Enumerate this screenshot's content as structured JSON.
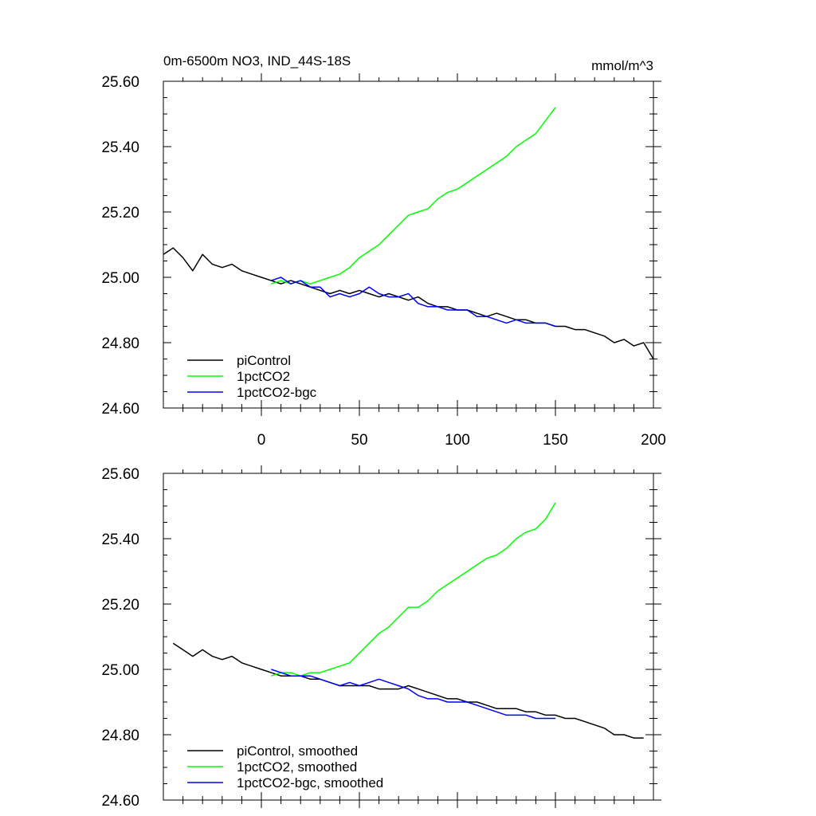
{
  "chart_data": [
    {
      "type": "line",
      "title": "0m-6500m NO3, IND_44S-18S",
      "units": "mmol/m^3",
      "xlim": [
        -50,
        200
      ],
      "ylim": [
        24.6,
        25.6
      ],
      "x_ticks": [
        "0",
        "50",
        "100",
        "150",
        "200"
      ],
      "y_ticks": [
        "25.60",
        "25.40",
        "25.20",
        "25.00",
        "24.80",
        "24.60"
      ],
      "legend_position": "bottom-left",
      "series": [
        {
          "name": "piControl",
          "color": "#000000",
          "x": [
            -50,
            -45,
            -40,
            -35,
            -30,
            -25,
            -20,
            -15,
            -10,
            -5,
            0,
            5,
            10,
            15,
            20,
            25,
            30,
            35,
            40,
            45,
            50,
            55,
            60,
            65,
            70,
            75,
            80,
            85,
            90,
            95,
            100,
            105,
            110,
            115,
            120,
            125,
            130,
            135,
            140,
            145,
            150,
            155,
            160,
            165,
            170,
            175,
            180,
            185,
            190,
            195,
            200
          ],
          "y": [
            25.07,
            25.09,
            25.06,
            25.02,
            25.07,
            25.04,
            25.03,
            25.04,
            25.02,
            25.01,
            25.0,
            24.99,
            24.98,
            24.99,
            24.98,
            24.97,
            24.96,
            24.95,
            24.96,
            24.95,
            24.96,
            24.95,
            24.94,
            24.95,
            24.94,
            24.93,
            24.94,
            24.92,
            24.91,
            24.91,
            24.9,
            24.9,
            24.89,
            24.88,
            24.89,
            24.88,
            24.87,
            24.87,
            24.86,
            24.86,
            24.85,
            24.85,
            24.84,
            24.84,
            24.83,
            24.82,
            24.8,
            24.81,
            24.79,
            24.8,
            24.75
          ]
        },
        {
          "name": "1pctCO2",
          "color": "#00ff00",
          "x": [
            5,
            10,
            15,
            20,
            25,
            30,
            35,
            40,
            45,
            50,
            55,
            60,
            65,
            70,
            75,
            80,
            85,
            90,
            95,
            100,
            105,
            110,
            115,
            120,
            125,
            130,
            135,
            140,
            145,
            150
          ],
          "y": [
            24.98,
            24.99,
            24.98,
            24.99,
            24.98,
            24.99,
            25.0,
            25.01,
            25.03,
            25.06,
            25.08,
            25.1,
            25.13,
            25.16,
            25.19,
            25.2,
            25.21,
            25.24,
            25.26,
            25.27,
            25.29,
            25.31,
            25.33,
            25.35,
            25.37,
            25.4,
            25.42,
            25.44,
            25.48,
            25.52
          ]
        },
        {
          "name": "1pctCO2-bgc",
          "color": "#0000ff",
          "x": [
            5,
            10,
            15,
            20,
            25,
            30,
            35,
            40,
            45,
            50,
            55,
            60,
            65,
            70,
            75,
            80,
            85,
            90,
            95,
            100,
            105,
            110,
            115,
            120,
            125,
            130,
            135,
            140,
            145,
            150
          ],
          "y": [
            24.99,
            25.0,
            24.98,
            24.99,
            24.97,
            24.97,
            24.94,
            24.95,
            24.94,
            24.95,
            24.97,
            24.95,
            24.94,
            24.94,
            24.95,
            24.92,
            24.91,
            24.91,
            24.9,
            24.9,
            24.9,
            24.88,
            24.88,
            24.87,
            24.86,
            24.87,
            24.86,
            24.86,
            24.86,
            24.85
          ]
        }
      ]
    },
    {
      "type": "line",
      "xlim": [
        -50,
        200
      ],
      "ylim": [
        24.6,
        25.6
      ],
      "y_ticks": [
        "25.60",
        "25.40",
        "25.20",
        "25.00",
        "24.80",
        "24.60"
      ],
      "legend_position": "bottom-left",
      "series": [
        {
          "name": "piControl, smoothed",
          "color": "#000000",
          "x": [
            -45,
            -40,
            -35,
            -30,
            -25,
            -20,
            -15,
            -10,
            -5,
            0,
            5,
            10,
            15,
            20,
            25,
            30,
            35,
            40,
            45,
            50,
            55,
            60,
            65,
            70,
            75,
            80,
            85,
            90,
            95,
            100,
            105,
            110,
            115,
            120,
            125,
            130,
            135,
            140,
            145,
            150,
            155,
            160,
            165,
            170,
            175,
            180,
            185,
            190,
            195
          ],
          "y": [
            25.08,
            25.06,
            25.04,
            25.06,
            25.04,
            25.03,
            25.04,
            25.02,
            25.01,
            25.0,
            24.99,
            24.98,
            24.98,
            24.98,
            24.97,
            24.97,
            24.96,
            24.95,
            24.95,
            24.95,
            24.95,
            24.94,
            24.94,
            24.94,
            24.95,
            24.94,
            24.93,
            24.92,
            24.91,
            24.91,
            24.9,
            24.9,
            24.89,
            24.88,
            24.88,
            24.88,
            24.87,
            24.87,
            24.86,
            24.86,
            24.85,
            24.85,
            24.84,
            24.83,
            24.82,
            24.8,
            24.8,
            24.79,
            24.79
          ]
        },
        {
          "name": "1pctCO2, smoothed",
          "color": "#00ff00",
          "x": [
            5,
            10,
            15,
            20,
            25,
            30,
            35,
            40,
            45,
            50,
            55,
            60,
            65,
            70,
            75,
            80,
            85,
            90,
            95,
            100,
            105,
            110,
            115,
            120,
            125,
            130,
            135,
            140,
            145,
            150
          ],
          "y": [
            24.98,
            24.99,
            24.99,
            24.98,
            24.99,
            24.99,
            25.0,
            25.01,
            25.02,
            25.05,
            25.08,
            25.11,
            25.13,
            25.16,
            25.19,
            25.19,
            25.21,
            25.24,
            25.26,
            25.28,
            25.3,
            25.32,
            25.34,
            25.35,
            25.37,
            25.4,
            25.42,
            25.43,
            25.46,
            25.51
          ]
        },
        {
          "name": "1pctCO2-bgc, smoothed",
          "color": "#0000ff",
          "x": [
            5,
            10,
            15,
            20,
            25,
            30,
            35,
            40,
            45,
            50,
            55,
            60,
            65,
            70,
            75,
            80,
            85,
            90,
            95,
            100,
            105,
            110,
            115,
            120,
            125,
            130,
            135,
            140,
            145,
            150
          ],
          "y": [
            25.0,
            24.99,
            24.98,
            24.98,
            24.98,
            24.97,
            24.96,
            24.95,
            24.96,
            24.95,
            24.96,
            24.97,
            24.96,
            24.95,
            24.94,
            24.92,
            24.91,
            24.91,
            24.9,
            24.9,
            24.9,
            24.89,
            24.88,
            24.87,
            24.86,
            24.86,
            24.86,
            24.85,
            24.85,
            24.85
          ]
        }
      ]
    }
  ]
}
